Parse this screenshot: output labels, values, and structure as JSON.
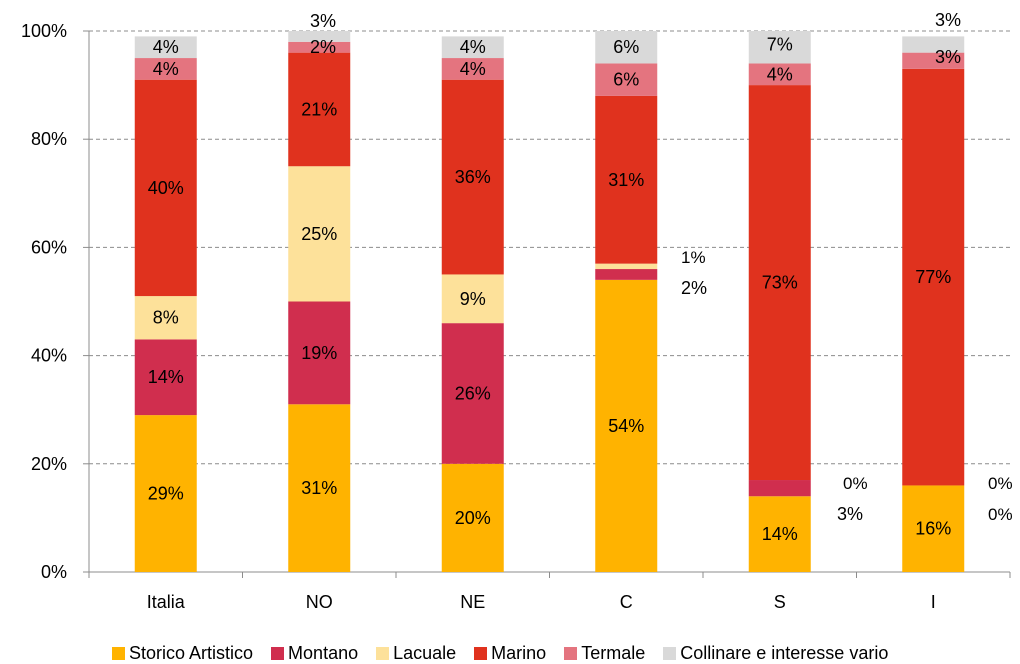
{
  "chart_data": {
    "type": "bar",
    "stacked": true,
    "categories": [
      "Italia",
      "NO",
      "NE",
      "C",
      "S",
      "I"
    ],
    "ylim": [
      0,
      100
    ],
    "yticks": [
      "0%",
      "20%",
      "40%",
      "60%",
      "80%",
      "100%"
    ],
    "grid": true,
    "legend_position": "bottom",
    "series": [
      {
        "name": "Storico Artistico",
        "color": "#FFB300",
        "values": [
          29,
          31,
          20,
          54,
          14,
          16
        ],
        "labels": [
          "29%",
          "31%",
          "20%",
          "54%",
          "14%",
          "16%"
        ]
      },
      {
        "name": "Montano",
        "color": "#D02E4E",
        "values": [
          14,
          19,
          26,
          2,
          3,
          0
        ],
        "labels": [
          "14%",
          "19%",
          "26%",
          "2%",
          "3%",
          "0%"
        ]
      },
      {
        "name": "Lacuale",
        "color": "#FDE19A",
        "values": [
          8,
          25,
          9,
          1,
          0,
          0
        ],
        "labels": [
          "8%",
          "25%",
          "9%",
          "1%",
          "0%",
          "0%"
        ]
      },
      {
        "name": "Marino",
        "color": "#E0321E",
        "values": [
          40,
          21,
          36,
          31,
          73,
          77
        ],
        "labels": [
          "40%",
          "21%",
          "36%",
          "31%",
          "73%",
          "77%"
        ]
      },
      {
        "name": "Termale",
        "color": "#E4747F",
        "values": [
          4,
          2,
          4,
          6,
          4,
          3
        ],
        "labels": [
          "4%",
          "2%",
          "4%",
          "6%",
          "4%",
          "3%"
        ]
      },
      {
        "name": "Collinare e interesse vario",
        "color": "#D9D9D9",
        "values": [
          4,
          3,
          4,
          6,
          7,
          3
        ],
        "labels": [
          "4%",
          "3%",
          "4%",
          "6%",
          "7%",
          "3%"
        ]
      }
    ]
  }
}
